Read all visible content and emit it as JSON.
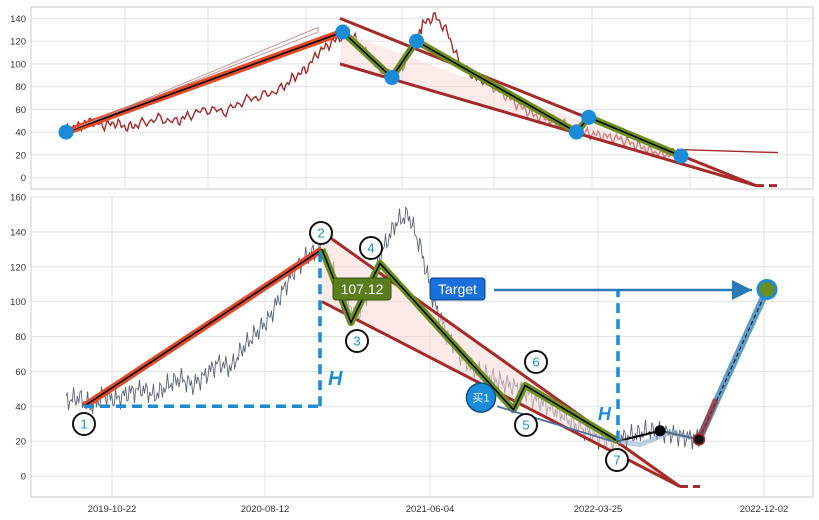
{
  "colors": {
    "price_top": "#a52a2a",
    "price_bottom": "#5a6478",
    "trend_orange": "#e04a2a",
    "channel": "#a52a2a",
    "zig_green": "#6b8e23",
    "dot_blue": "#1a8cd8",
    "dashed_blue": "#1a8cd8",
    "target_box": "#1a6fd8",
    "label_green": "#5a7d1e",
    "projection_line": "#2a7ab5",
    "fill_pink": "#f8d8d4"
  },
  "chart_data": [
    {
      "type": "line",
      "panel": "top",
      "title": "",
      "xlabel": "",
      "ylabel": "",
      "ylim": [
        -10,
        150
      ],
      "yticks": [
        "0",
        "20",
        "40",
        "60",
        "80",
        "100",
        "120",
        "140"
      ],
      "grid": true,
      "series": [
        {
          "role": "price",
          "points": [
            [
              0,
              42
            ],
            [
              0.02,
              45
            ],
            [
              0.04,
              50
            ],
            [
              0.06,
              46
            ],
            [
              0.08,
              48
            ],
            [
              0.1,
              44
            ],
            [
              0.12,
              47
            ],
            [
              0.15,
              52
            ],
            [
              0.18,
              49
            ],
            [
              0.2,
              55
            ],
            [
              0.23,
              60
            ],
            [
              0.26,
              58
            ],
            [
              0.29,
              68
            ],
            [
              0.32,
              72
            ],
            [
              0.35,
              78
            ],
            [
              0.37,
              88
            ],
            [
              0.39,
              95
            ],
            [
              0.41,
              110
            ],
            [
              0.43,
              118
            ],
            [
              0.45,
              125
            ],
            [
              0.47,
              122
            ],
            [
              0.49,
              108
            ],
            [
              0.51,
              96
            ],
            [
              0.53,
              88
            ],
            [
              0.55,
              100
            ],
            [
              0.57,
              120
            ],
            [
              0.58,
              135
            ],
            [
              0.6,
              142
            ],
            [
              0.62,
              128
            ],
            [
              0.64,
              100
            ],
            [
              0.66,
              90
            ],
            [
              0.68,
              85
            ],
            [
              0.7,
              78
            ],
            [
              0.72,
              70
            ],
            [
              0.74,
              62
            ],
            [
              0.76,
              55
            ],
            [
              0.78,
              52
            ],
            [
              0.8,
              48
            ],
            [
              0.82,
              45
            ],
            [
              0.84,
              40
            ],
            [
              0.86,
              38
            ],
            [
              0.88,
              36
            ],
            [
              0.9,
              34
            ],
            [
              0.92,
              30
            ],
            [
              0.94,
              26
            ],
            [
              0.96,
              22
            ],
            [
              0.98,
              20
            ],
            [
              1.0,
              25
            ]
          ]
        },
        {
          "role": "trend",
          "points": [
            [
              0,
              40
            ],
            [
              0.45,
              128
            ]
          ]
        },
        {
          "role": "zigzag",
          "points": [
            [
              0.45,
              128
            ],
            [
              0.53,
              88
            ],
            [
              0.57,
              120
            ],
            [
              0.83,
              40
            ],
            [
              0.85,
              53
            ],
            [
              1.0,
              19
            ]
          ]
        }
      ],
      "markers": [
        [
          0,
          40
        ],
        [
          0.45,
          128
        ],
        [
          0.53,
          88
        ],
        [
          0.57,
          120
        ],
        [
          0.83,
          40
        ],
        [
          0.85,
          53
        ],
        [
          1.0,
          19
        ]
      ]
    },
    {
      "type": "line",
      "panel": "bottom",
      "title": "",
      "xlabel": "",
      "ylabel": "",
      "ylim": [
        -12,
        160
      ],
      "yticks": [
        "0",
        "20",
        "40",
        "60",
        "80",
        "100",
        "120",
        "140",
        "160"
      ],
      "xticks": [
        "2019-10-22",
        "2020-08-12",
        "2021-06-04",
        "2022-03-25",
        "2022-12-02"
      ],
      "grid": true,
      "series": [
        {
          "role": "price",
          "points": [
            [
              0,
              43
            ],
            [
              0.02,
              45
            ],
            [
              0.04,
              40
            ],
            [
              0.06,
              46
            ],
            [
              0.08,
              44
            ],
            [
              0.1,
              48
            ],
            [
              0.12,
              50
            ],
            [
              0.14,
              46
            ],
            [
              0.16,
              52
            ],
            [
              0.18,
              56
            ],
            [
              0.2,
              52
            ],
            [
              0.22,
              58
            ],
            [
              0.24,
              65
            ],
            [
              0.26,
              62
            ],
            [
              0.28,
              74
            ],
            [
              0.3,
              82
            ],
            [
              0.32,
              90
            ],
            [
              0.34,
              105
            ],
            [
              0.36,
              118
            ],
            [
              0.38,
              126
            ],
            [
              0.4,
              130
            ],
            [
              0.42,
              118
            ],
            [
              0.44,
              100
            ],
            [
              0.46,
              92
            ],
            [
              0.48,
              110
            ],
            [
              0.5,
              130
            ],
            [
              0.52,
              145
            ],
            [
              0.54,
              150
            ],
            [
              0.56,
              130
            ],
            [
              0.58,
              100
            ],
            [
              0.6,
              82
            ],
            [
              0.62,
              70
            ],
            [
              0.64,
              62
            ],
            [
              0.66,
              58
            ],
            [
              0.68,
              55
            ],
            [
              0.7,
              52
            ],
            [
              0.72,
              50
            ],
            [
              0.74,
              44
            ],
            [
              0.76,
              40
            ],
            [
              0.78,
              36
            ],
            [
              0.8,
              30
            ],
            [
              0.82,
              26
            ],
            [
              0.84,
              22
            ],
            [
              0.86,
              20
            ],
            [
              0.88,
              22
            ],
            [
              0.9,
              24
            ],
            [
              0.92,
              26
            ],
            [
              0.94,
              25
            ],
            [
              0.96,
              24
            ],
            [
              0.98,
              22
            ],
            [
              1.0,
              22
            ]
          ]
        },
        {
          "role": "trend",
          "points": [
            [
              0,
              40
            ],
            [
              0.45,
              130
            ]
          ]
        },
        {
          "role": "zigzag",
          "points": [
            [
              0.45,
              130
            ],
            [
              0.5,
              88
            ],
            [
              0.55,
              122
            ],
            [
              0.78,
              38
            ],
            [
              0.8,
              52
            ],
            [
              0.96,
              20
            ]
          ]
        },
        {
          "role": "projection",
          "points": [
            [
              0.96,
              20
            ],
            [
              1.03,
              24
            ],
            [
              1.08,
              27
            ],
            [
              1.14,
              22
            ],
            [
              1.24,
              108
            ]
          ]
        }
      ],
      "markers": [
        {
          "label": "1",
          "x": 0.0,
          "y": 40
        },
        {
          "label": "2",
          "x": 0.45,
          "y": 130
        },
        {
          "label": "3",
          "x": 0.5,
          "y": 88
        },
        {
          "label": "4",
          "x": 0.55,
          "y": 122
        },
        {
          "label": "5",
          "x": 0.78,
          "y": 38
        },
        {
          "label": "6",
          "x": 0.8,
          "y": 52
        },
        {
          "label": "7",
          "x": 0.96,
          "y": 20
        }
      ],
      "annotations": {
        "value_label": "107.12",
        "target_label": "Target",
        "buy_label": "买1",
        "h_label": "H"
      }
    }
  ]
}
